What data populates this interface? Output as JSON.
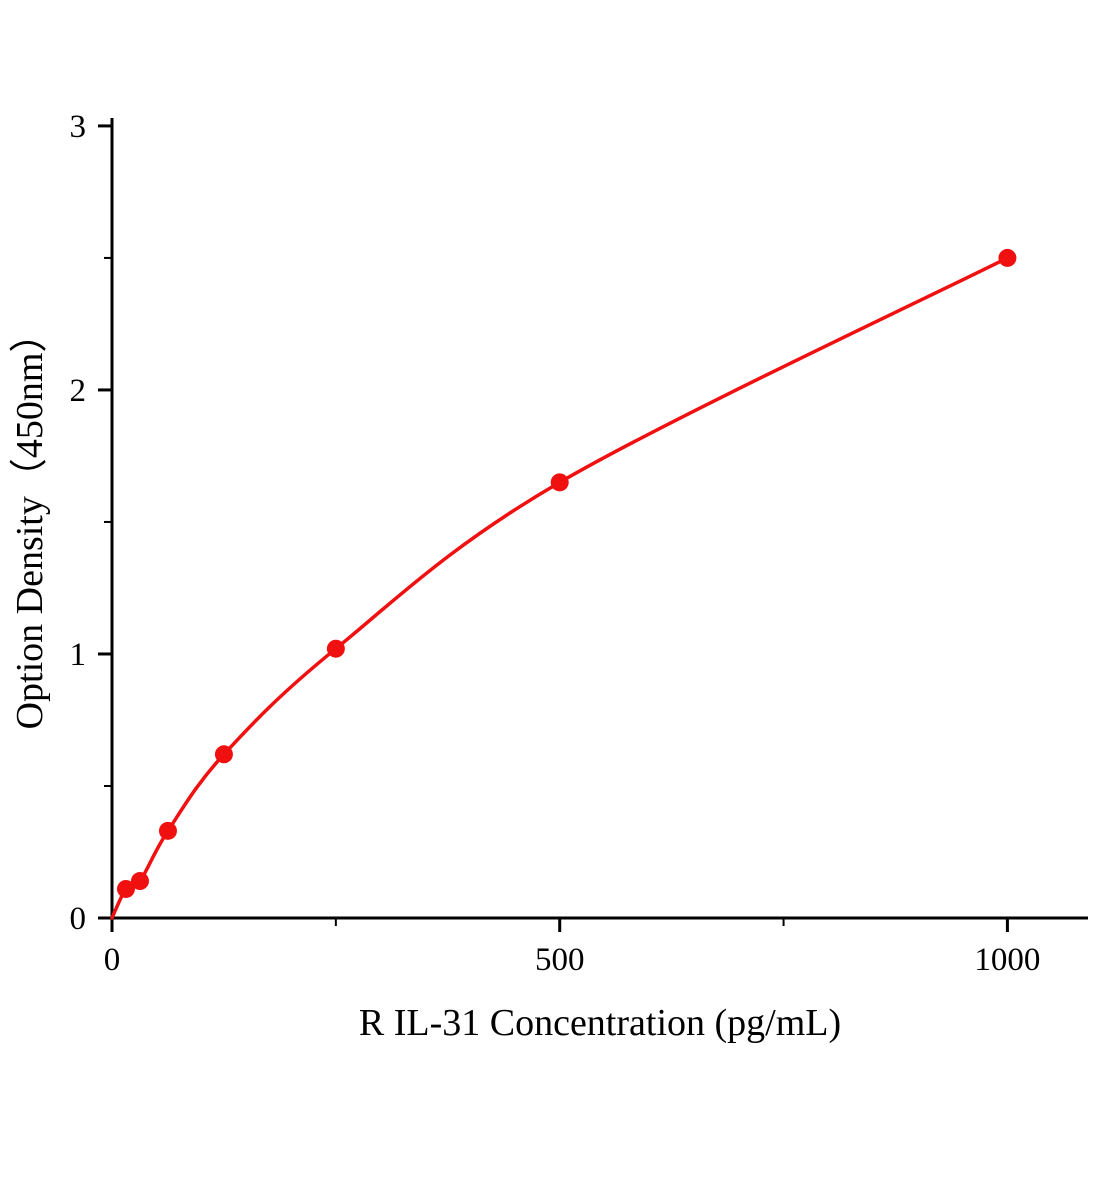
{
  "figure": {
    "background": "#ffffff"
  },
  "chart_data": {
    "type": "line",
    "title": "",
    "xlabel": "R IL-31 Concentration (pg/mL)",
    "ylabel": "Option Density（450nm）",
    "x": [
      0,
      15.6,
      31.25,
      62.5,
      125,
      250,
      500,
      1000
    ],
    "y": [
      0,
      0.11,
      0.14,
      0.33,
      0.62,
      1.02,
      1.65,
      2.5
    ],
    "markers": [
      false,
      true,
      true,
      true,
      true,
      true,
      true,
      true
    ],
    "xlim": [
      0,
      1090
    ],
    "ylim": [
      0,
      3.03
    ],
    "x_ticks": [
      0,
      500,
      1000
    ],
    "x_minor_ticks": [
      250,
      750
    ],
    "y_ticks": [
      0,
      1,
      2,
      3
    ],
    "y_minor_ticks": [
      0.5,
      1.5,
      2.5
    ],
    "grid": false,
    "legend": null,
    "line_color": "#f01010",
    "marker_color": "#f01010",
    "axis_color": "#000000",
    "marker_size": 9
  }
}
